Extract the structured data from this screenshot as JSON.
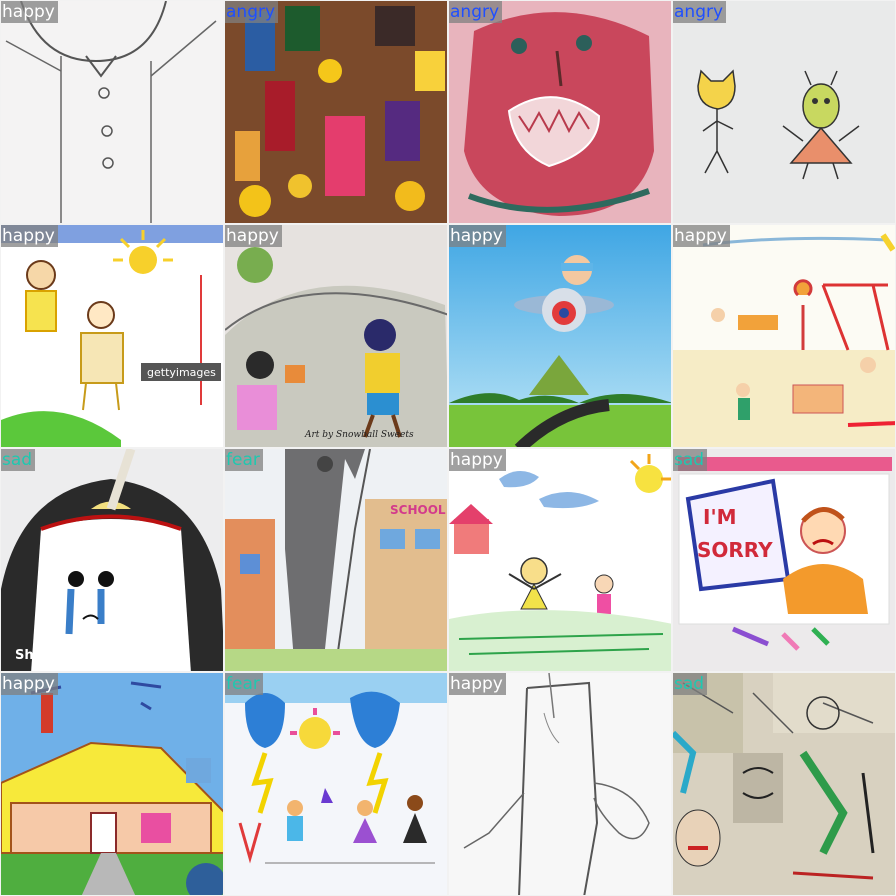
{
  "tiles": [
    {
      "label": "happy",
      "label_color": "#ffffff",
      "scene": "outline-figure",
      "subject": "pencil sketch of a person with buttons and raised arms"
    },
    {
      "label": "angry",
      "label_color": "#1f4fff",
      "scene": "crowd-collage",
      "subject": "colorful crowd of painted figures"
    },
    {
      "label": "angry",
      "label_color": "#1f4fff",
      "scene": "pink-face",
      "subject": "red painted face with teeth"
    },
    {
      "label": "angry",
      "label_color": "#1f4fff",
      "scene": "cat-alien",
      "subject": "cat and alien stick figures"
    },
    {
      "label": "happy",
      "label_color": "#ffffff",
      "scene": "family-sun",
      "subject": "stick figures under a yellow sun",
      "watermark": "gettyimages"
    },
    {
      "label": "happy",
      "label_color": "#ffffff",
      "scene": "kids-gift",
      "subject": "boy and girl exchanging a gift",
      "caption": "Art by Snowball Sweets"
    },
    {
      "label": "happy",
      "label_color": "#ffffff",
      "scene": "pilot-plane",
      "subject": "cartoon pilot in a plane over hills"
    },
    {
      "label": "happy",
      "label_color": "#ffffff",
      "scene": "playground",
      "subject": "children in a playground"
    },
    {
      "label": "sad",
      "label_color": "#1fc8b0",
      "scene": "crying-girl",
      "subject": "girl with long hair crying",
      "watermark": "Shorts"
    },
    {
      "label": "fear",
      "label_color": "#1fc8b0",
      "scene": "storm-school",
      "subject": "storm over a house and school",
      "sign": "SCHOOL"
    },
    {
      "label": "happy",
      "label_color": "#ffffff",
      "scene": "meadow-kids",
      "subject": "children in a meadow with a sun"
    },
    {
      "label": "sad",
      "label_color": "#1fc8b0",
      "scene": "sorry-sign",
      "subject": "child holding a sign",
      "sign_lines": [
        "I'M",
        "SORRY"
      ]
    },
    {
      "label": "happy",
      "label_color": "#ffffff",
      "scene": "yellow-house",
      "subject": "yellow house with birds"
    },
    {
      "label": "fear",
      "label_color": "#1fc8b0",
      "scene": "lightning-crowd",
      "subject": "people under lightning and a sun"
    },
    {
      "label": "happy",
      "label_color": "#ffffff",
      "scene": "gown-sketch",
      "subject": "pencil sketch of a tall figure"
    },
    {
      "label": "sad",
      "label_color": "#1fc8b0",
      "scene": "sketch-collage",
      "subject": "collage of sketched faces"
    }
  ]
}
